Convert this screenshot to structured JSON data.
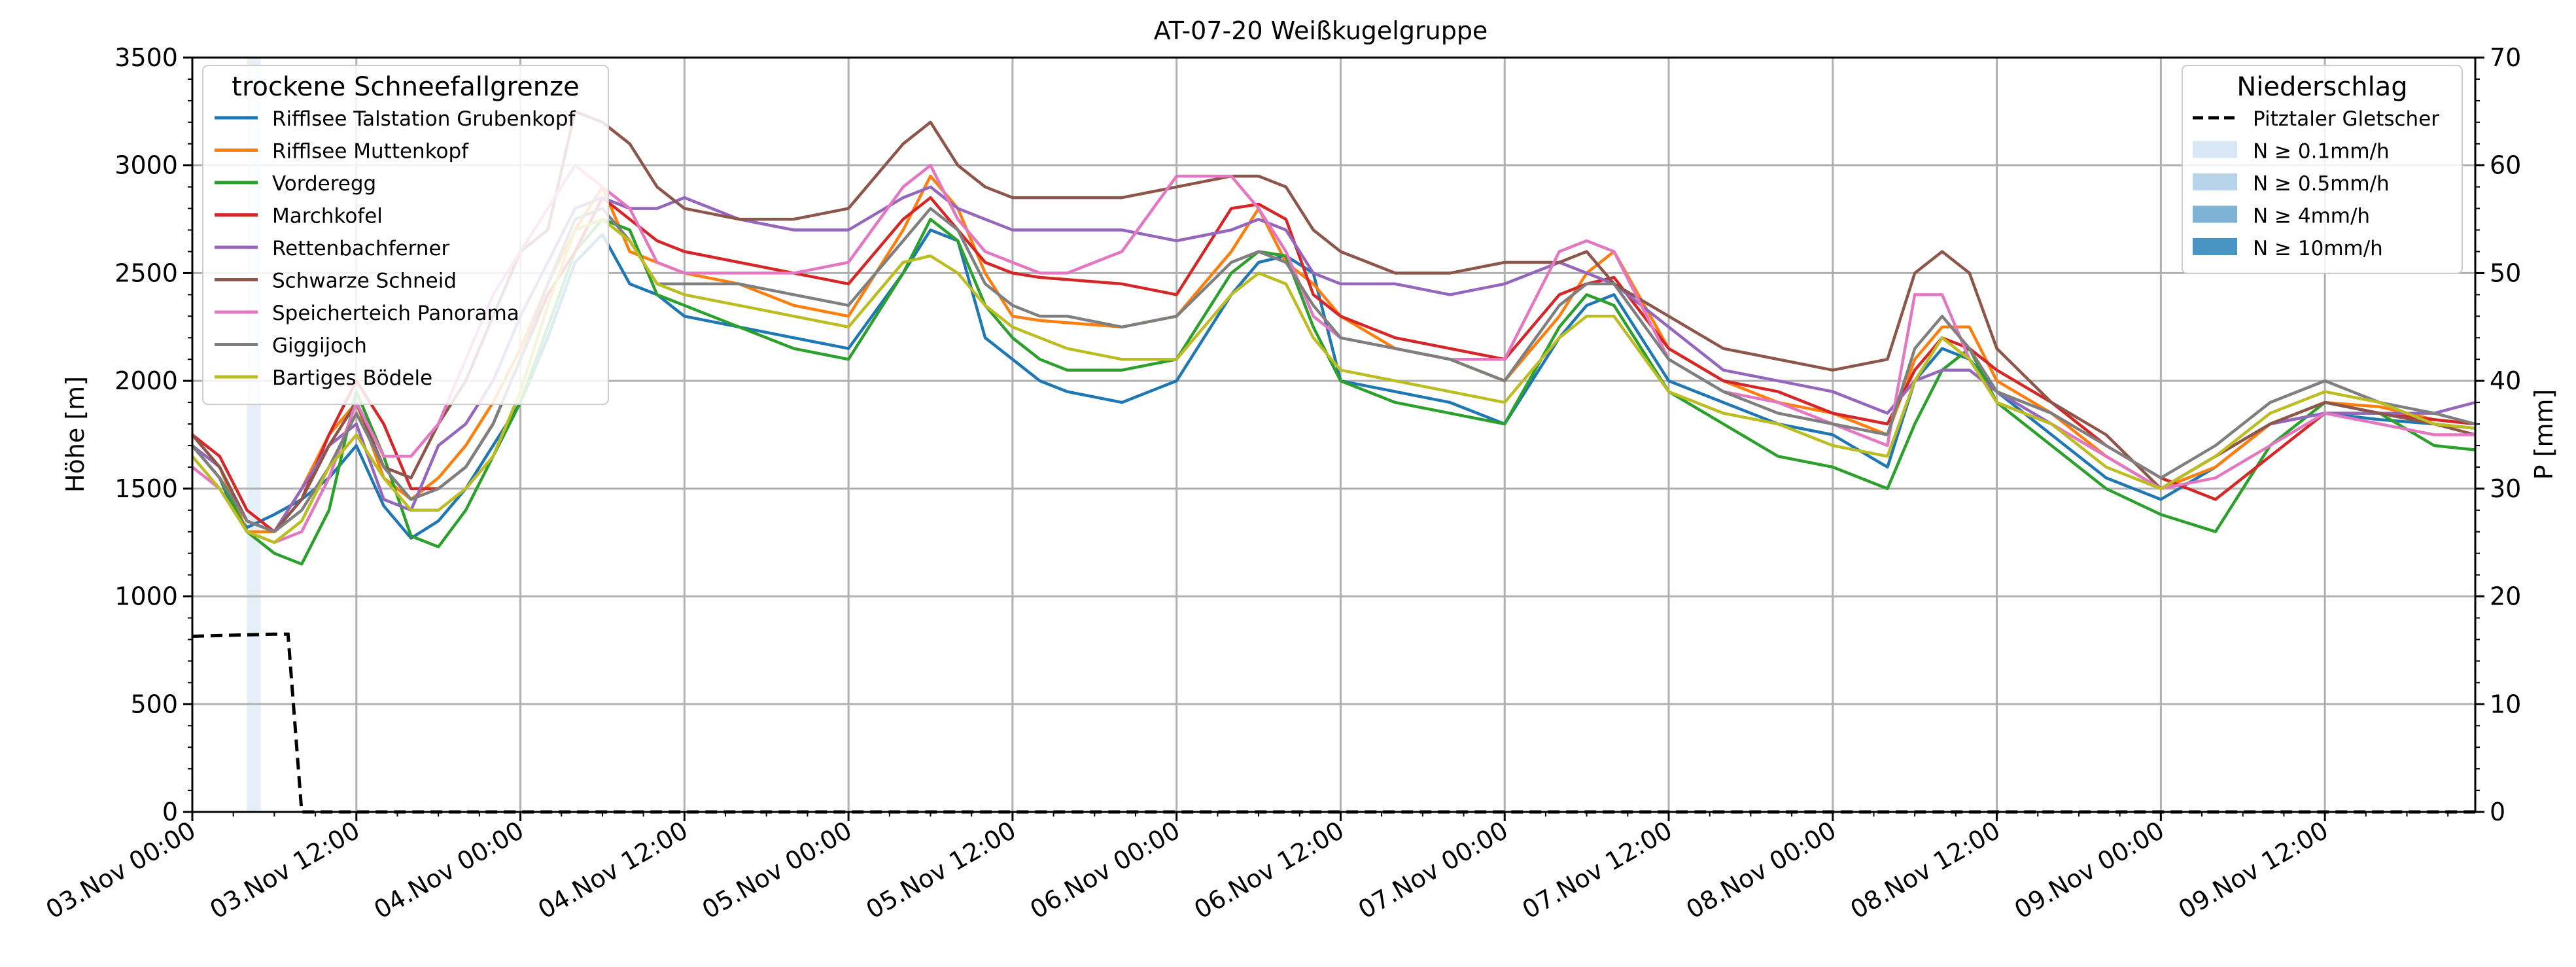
{
  "chart_data": {
    "type": "line",
    "title": "AT-07-20 Weißkugelgruppe",
    "ylabel_left": "Höhe [m]",
    "ylabel_right": "P [mm]",
    "ylim_left": [
      0,
      3500
    ],
    "ylim_right": [
      0,
      70
    ],
    "yticks_left": [
      "0",
      "500",
      "1000",
      "1500",
      "2000",
      "2500",
      "3000",
      "3500"
    ],
    "yticks_right": [
      "0",
      "10",
      "20",
      "30",
      "40",
      "50",
      "60",
      "70"
    ],
    "xlim_hours": [
      0,
      167
    ],
    "xticks": [
      "03.Nov 00:00",
      "03.Nov 12:00",
      "04.Nov 00:00",
      "04.Nov 12:00",
      "05.Nov 00:00",
      "05.Nov 12:00",
      "06.Nov 00:00",
      "06.Nov 12:00",
      "07.Nov 00:00",
      "07.Nov 12:00",
      "08.Nov 00:00",
      "08.Nov 12:00",
      "09.Nov 00:00",
      "09.Nov 12:00"
    ],
    "grid": true,
    "legend_left": {
      "title": "trockene Schneefallgrenze",
      "placement": "top-left"
    },
    "legend_right": {
      "title": "Niederschlag",
      "placement": "top-right",
      "entries": [
        {
          "label": "Pitztaler Gletscher",
          "style": "dashed",
          "color": "#000000"
        },
        {
          "label": "N ≥ 0.1mm/h",
          "color": "#dae8f5"
        },
        {
          "label": "N ≥ 0.5mm/h",
          "color": "#b7d4ea"
        },
        {
          "label": "N ≥ 4mm/h",
          "color": "#7fb3d6"
        },
        {
          "label": "N ≥ 10mm/h",
          "color": "#4a94c4"
        }
      ]
    },
    "precip_bars": [
      {
        "x_start": 4,
        "x_end": 5,
        "level": "N ≥ 0.1mm/h"
      }
    ],
    "precip_series": {
      "name": "Pitztaler Gletscher",
      "x": [
        0,
        6,
        7,
        8,
        167
      ],
      "values": [
        16.3,
        16.5,
        16.5,
        0,
        0
      ]
    },
    "series": [
      {
        "name": "Rifflsee Talstation Grubenkopf",
        "color": "#1f77b4",
        "x": [
          0,
          2,
          3,
          4,
          6,
          8,
          10,
          12,
          14,
          16,
          18,
          20,
          22,
          24,
          26,
          28,
          30,
          32,
          34,
          36,
          40,
          44,
          48,
          52,
          54,
          56,
          58,
          60,
          62,
          64,
          68,
          72,
          76,
          78,
          80,
          82,
          84,
          88,
          92,
          96,
          100,
          102,
          104,
          108,
          112,
          116,
          120,
          124,
          126,
          128,
          130,
          132,
          136,
          140,
          144,
          148,
          152,
          156,
          160,
          164,
          167
        ],
        "y": [
          1700,
          1550,
          1400,
          1320,
          1380,
          1450,
          1550,
          1700,
          1420,
          1270,
          1350,
          1500,
          1700,
          1900,
          2200,
          2550,
          2680,
          2450,
          2400,
          2300,
          2250,
          2200,
          2150,
          2500,
          2700,
          2650,
          2200,
          2100,
          2000,
          1950,
          1900,
          2000,
          2400,
          2550,
          2580,
          2500,
          2000,
          1950,
          1900,
          1800,
          2200,
          2350,
          2400,
          2000,
          1900,
          1800,
          1750,
          1600,
          2000,
          2150,
          2100,
          1950,
          1750,
          1550,
          1450,
          1600,
          1800,
          1850,
          1820,
          1800,
          1780
        ]
      },
      {
        "name": "Rifflsee Muttenkopf",
        "color": "#ff7f0e",
        "x": [
          0,
          2,
          4,
          6,
          8,
          10,
          12,
          14,
          16,
          18,
          20,
          22,
          24,
          26,
          28,
          30,
          32,
          34,
          36,
          40,
          44,
          48,
          52,
          54,
          56,
          58,
          60,
          62,
          64,
          68,
          72,
          76,
          78,
          80,
          82,
          84,
          88,
          92,
          96,
          100,
          102,
          104,
          108,
          112,
          116,
          120,
          124,
          126,
          128,
          130,
          132,
          136,
          140,
          144,
          148,
          152,
          156,
          160,
          164,
          167
        ],
        "y": [
          1750,
          1600,
          1300,
          1300,
          1500,
          1750,
          1900,
          1550,
          1450,
          1550,
          1700,
          1900,
          2150,
          2450,
          2700,
          2900,
          2600,
          2550,
          2500,
          2450,
          2350,
          2300,
          2700,
          2950,
          2800,
          2500,
          2300,
          2280,
          2270,
          2250,
          2300,
          2600,
          2800,
          2550,
          2450,
          2300,
          2150,
          2100,
          2000,
          2300,
          2500,
          2600,
          2150,
          2000,
          1900,
          1850,
          1750,
          2100,
          2250,
          2250,
          2000,
          1850,
          1650,
          1500,
          1600,
          1800,
          1900,
          1880,
          1820,
          1800
        ]
      },
      {
        "name": "Vorderegg",
        "color": "#2ca02c",
        "x": [
          0,
          2,
          4,
          6,
          8,
          10,
          12,
          14,
          16,
          18,
          20,
          22,
          24,
          26,
          28,
          30,
          32,
          34,
          36,
          40,
          44,
          48,
          52,
          54,
          56,
          58,
          60,
          62,
          64,
          68,
          72,
          76,
          78,
          80,
          82,
          84,
          88,
          92,
          96,
          100,
          102,
          104,
          108,
          112,
          116,
          120,
          124,
          126,
          128,
          130,
          132,
          136,
          140,
          144,
          148,
          152,
          156,
          160,
          164,
          167
        ],
        "y": [
          1700,
          1550,
          1300,
          1200,
          1150,
          1400,
          1950,
          1650,
          1280,
          1230,
          1400,
          1650,
          1900,
          2250,
          2600,
          2750,
          2700,
          2400,
          2350,
          2250,
          2150,
          2100,
          2500,
          2750,
          2650,
          2350,
          2200,
          2100,
          2050,
          2050,
          2100,
          2500,
          2600,
          2580,
          2250,
          2000,
          1900,
          1850,
          1800,
          2250,
          2400,
          2350,
          1950,
          1800,
          1650,
          1600,
          1500,
          1800,
          2050,
          2150,
          1900,
          1700,
          1500,
          1380,
          1300,
          1700,
          1900,
          1850,
          1700,
          1680
        ]
      },
      {
        "name": "Marchkofel",
        "color": "#d62728",
        "x": [
          0,
          2,
          4,
          6,
          8,
          10,
          12,
          14,
          16,
          18,
          20,
          22,
          24,
          26,
          28,
          30,
          32,
          34,
          36,
          40,
          44,
          48,
          52,
          54,
          56,
          58,
          60,
          62,
          64,
          68,
          72,
          76,
          78,
          80,
          82,
          84,
          88,
          92,
          96,
          100,
          102,
          104,
          108,
          112,
          116,
          120,
          124,
          126,
          128,
          130,
          132,
          136,
          140,
          144,
          148,
          152,
          156,
          160,
          164,
          167
        ],
        "y": [
          1750,
          1650,
          1400,
          1300,
          1450,
          1750,
          2000,
          1800,
          1500,
          1500,
          1600,
          1800,
          2100,
          2400,
          2600,
          2850,
          2750,
          2650,
          2600,
          2550,
          2500,
          2450,
          2750,
          2850,
          2700,
          2550,
          2500,
          2480,
          2470,
          2450,
          2400,
          2800,
          2820,
          2750,
          2400,
          2300,
          2200,
          2150,
          2100,
          2400,
          2450,
          2480,
          2150,
          2000,
          1950,
          1850,
          1800,
          2050,
          2200,
          2150,
          2050,
          1900,
          1700,
          1550,
          1450,
          1650,
          1850,
          1850,
          1820,
          1800
        ]
      },
      {
        "name": "Rettenbachferner",
        "color": "#9467bd",
        "x": [
          0,
          2,
          4,
          6,
          8,
          10,
          12,
          14,
          16,
          18,
          20,
          22,
          24,
          26,
          28,
          30,
          32,
          34,
          36,
          40,
          44,
          48,
          52,
          54,
          56,
          58,
          60,
          62,
          64,
          68,
          72,
          76,
          78,
          80,
          82,
          84,
          88,
          92,
          96,
          100,
          102,
          104,
          108,
          112,
          116,
          120,
          124,
          126,
          128,
          130,
          132,
          136,
          140,
          144,
          148,
          152,
          156,
          160,
          164,
          167
        ],
        "y": [
          1700,
          1600,
          1350,
          1300,
          1500,
          1700,
          1800,
          1450,
          1400,
          1700,
          1800,
          2000,
          2300,
          2550,
          2800,
          2850,
          2800,
          2800,
          2850,
          2750,
          2700,
          2700,
          2850,
          2900,
          2800,
          2750,
          2700,
          2700,
          2700,
          2700,
          2650,
          2700,
          2750,
          2700,
          2500,
          2450,
          2450,
          2400,
          2450,
          2550,
          2500,
          2450,
          2250,
          2050,
          2000,
          1950,
          1850,
          2000,
          2050,
          2050,
          1950,
          1800,
          1650,
          1500,
          1650,
          1800,
          1850,
          1850,
          1850,
          1900
        ]
      },
      {
        "name": "Schwarze Schneid",
        "color": "#8c564b",
        "x": [
          0,
          2,
          4,
          6,
          8,
          10,
          12,
          14,
          16,
          18,
          20,
          22,
          24,
          26,
          28,
          30,
          32,
          34,
          36,
          40,
          44,
          48,
          52,
          54,
          56,
          58,
          60,
          62,
          64,
          68,
          72,
          76,
          78,
          80,
          82,
          84,
          88,
          92,
          96,
          100,
          102,
          104,
          108,
          112,
          116,
          120,
          124,
          126,
          128,
          130,
          132,
          136,
          140,
          144,
          148,
          152,
          156,
          160,
          164,
          167
        ],
        "y": [
          1750,
          1600,
          1350,
          1300,
          1450,
          1700,
          1900,
          1600,
          1550,
          1800,
          2000,
          2300,
          2600,
          2700,
          3250,
          3200,
          3100,
          2900,
          2800,
          2750,
          2750,
          2800,
          3100,
          3200,
          3000,
          2900,
          2850,
          2850,
          2850,
          2850,
          2900,
          2950,
          2950,
          2900,
          2700,
          2600,
          2500,
          2500,
          2550,
          2550,
          2600,
          2450,
          2300,
          2150,
          2100,
          2050,
          2100,
          2500,
          2600,
          2500,
          2150,
          1900,
          1750,
          1500,
          1650,
          1800,
          1900,
          1850,
          1800,
          1750
        ]
      },
      {
        "name": "Speicherteich Panorama",
        "color": "#e377c2",
        "x": [
          0,
          2,
          4,
          6,
          8,
          10,
          12,
          14,
          16,
          18,
          20,
          22,
          24,
          26,
          28,
          30,
          32,
          34,
          36,
          40,
          44,
          48,
          52,
          54,
          56,
          58,
          60,
          62,
          64,
          68,
          72,
          76,
          78,
          80,
          82,
          84,
          88,
          92,
          96,
          100,
          102,
          104,
          108,
          112,
          116,
          120,
          124,
          126,
          128,
          130,
          132,
          136,
          140,
          144,
          148,
          152,
          156,
          160,
          164,
          167
        ],
        "y": [
          1600,
          1500,
          1300,
          1250,
          1300,
          1550,
          1900,
          1650,
          1650,
          1800,
          2100,
          2400,
          2600,
          2800,
          3000,
          2900,
          2800,
          2550,
          2500,
          2500,
          2500,
          2550,
          2900,
          3000,
          2750,
          2600,
          2550,
          2500,
          2500,
          2600,
          2950,
          2950,
          2800,
          2600,
          2300,
          2200,
          2150,
          2100,
          2100,
          2600,
          2650,
          2600,
          2100,
          1950,
          1900,
          1800,
          1700,
          2400,
          2400,
          2100,
          1900,
          1800,
          1650,
          1500,
          1550,
          1700,
          1850,
          1800,
          1750,
          1750
        ]
      },
      {
        "name": "Giggijoch",
        "color": "#7f7f7f",
        "x": [
          0,
          2,
          4,
          6,
          8,
          10,
          12,
          14,
          16,
          18,
          20,
          22,
          24,
          26,
          28,
          30,
          32,
          34,
          36,
          40,
          44,
          48,
          52,
          54,
          56,
          58,
          60,
          62,
          64,
          68,
          72,
          76,
          78,
          80,
          82,
          84,
          88,
          92,
          96,
          100,
          102,
          104,
          108,
          112,
          116,
          120,
          124,
          126,
          128,
          130,
          132,
          136,
          140,
          144,
          148,
          152,
          156,
          160,
          164,
          167
        ],
        "y": [
          1700,
          1550,
          1350,
          1300,
          1400,
          1600,
          1850,
          1600,
          1450,
          1500,
          1600,
          1800,
          2100,
          2450,
          2750,
          2800,
          2650,
          2450,
          2450,
          2450,
          2400,
          2350,
          2650,
          2800,
          2700,
          2450,
          2350,
          2300,
          2300,
          2250,
          2300,
          2550,
          2600,
          2550,
          2350,
          2200,
          2150,
          2100,
          2000,
          2350,
          2450,
          2450,
          2100,
          1950,
          1850,
          1800,
          1750,
          2150,
          2300,
          2150,
          1950,
          1850,
          1700,
          1550,
          1700,
          1900,
          2000,
          1900,
          1850,
          1800
        ]
      },
      {
        "name": "Bartiges Bödele",
        "color": "#bcbd22",
        "x": [
          0,
          2,
          4,
          6,
          8,
          10,
          12,
          14,
          16,
          18,
          20,
          22,
          24,
          26,
          28,
          30,
          32,
          34,
          36,
          40,
          44,
          48,
          52,
          54,
          56,
          58,
          60,
          62,
          64,
          68,
          72,
          76,
          78,
          80,
          82,
          84,
          88,
          92,
          96,
          100,
          102,
          104,
          108,
          112,
          116,
          120,
          124,
          126,
          128,
          130,
          132,
          136,
          140,
          144,
          148,
          152,
          156,
          160,
          164,
          167
        ],
        "y": [
          1650,
          1500,
          1300,
          1250,
          1350,
          1600,
          1750,
          1550,
          1400,
          1400,
          1500,
          1650,
          1950,
          2350,
          2700,
          2750,
          2650,
          2450,
          2400,
          2350,
          2300,
          2250,
          2550,
          2580,
          2500,
          2350,
          2250,
          2200,
          2150,
          2100,
          2100,
          2400,
          2500,
          2450,
          2200,
          2050,
          2000,
          1950,
          1900,
          2200,
          2300,
          2300,
          1950,
          1850,
          1800,
          1700,
          1650,
          2000,
          2200,
          2100,
          1900,
          1800,
          1600,
          1500,
          1650,
          1850,
          1950,
          1900,
          1800,
          1780
        ]
      }
    ]
  }
}
